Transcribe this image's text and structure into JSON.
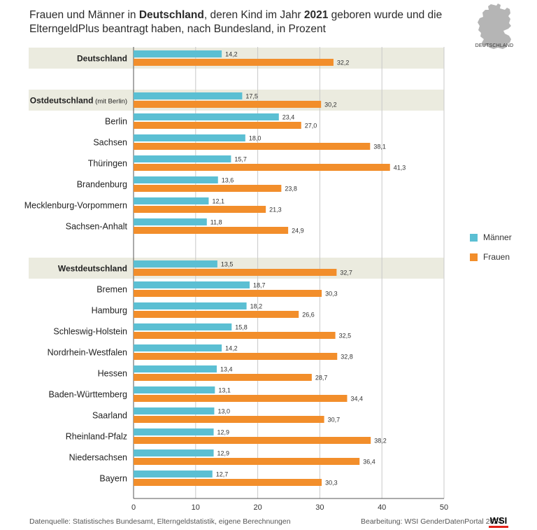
{
  "title": {
    "part1": "Frauen und Männer in ",
    "bold1": "Deutschland",
    "part2": ", deren Kind im Jahr ",
    "bold2": "2021",
    "part3": " geboren wurde und die ElterngeldPlus beantragt haben, nach Bundesland, in Prozent"
  },
  "badge": {
    "label": "DEUTSCHLAND"
  },
  "legend": [
    {
      "label": "Männer",
      "color": "#5bbfd3"
    },
    {
      "label": "Frauen",
      "color": "#f28e2b"
    }
  ],
  "footer": {
    "source": "Datenquelle: Statistisches Bundesamt, Elterngeldstatistik, eigene Berechnungen",
    "credit": "Bearbeitung: WSI GenderDatenPortal 2024",
    "logo": "WSI"
  },
  "chart_data": {
    "type": "bar",
    "orientation": "horizontal",
    "xlim": [
      0,
      50
    ],
    "xticks": [
      0,
      10,
      20,
      30,
      40,
      50
    ],
    "grid": true,
    "colors": {
      "men": "#5bbfd3",
      "women": "#f28e2b",
      "highlight": "#ebebdf"
    },
    "rows": [
      {
        "label": "Deutschland",
        "suffix": "",
        "bold": true,
        "highlight": true,
        "men": 14.2,
        "women": 32.2,
        "men_label": "14,2",
        "women_label": "32,2"
      },
      {
        "label": "Ostdeutschland",
        "suffix": " (mit Berlin)",
        "bold": true,
        "highlight": true,
        "men": 17.5,
        "women": 30.2,
        "men_label": "17,5",
        "women_label": "30,2"
      },
      {
        "label": "Berlin",
        "suffix": "",
        "bold": false,
        "highlight": false,
        "men": 23.4,
        "women": 27.0,
        "men_label": "23,4",
        "women_label": "27,0"
      },
      {
        "label": "Sachsen",
        "suffix": "",
        "bold": false,
        "highlight": false,
        "men": 18.0,
        "women": 38.1,
        "men_label": "18,0",
        "women_label": "38,1"
      },
      {
        "label": "Thüringen",
        "suffix": "",
        "bold": false,
        "highlight": false,
        "men": 15.7,
        "women": 41.3,
        "men_label": "15,7",
        "women_label": "41,3"
      },
      {
        "label": "Brandenburg",
        "suffix": "",
        "bold": false,
        "highlight": false,
        "men": 13.6,
        "women": 23.8,
        "men_label": "13,6",
        "women_label": "23,8"
      },
      {
        "label": "Mecklenburg-Vorpommern",
        "suffix": "",
        "bold": false,
        "highlight": false,
        "men": 12.1,
        "women": 21.3,
        "men_label": "12,1",
        "women_label": "21,3"
      },
      {
        "label": "Sachsen-Anhalt",
        "suffix": "",
        "bold": false,
        "highlight": false,
        "men": 11.8,
        "women": 24.9,
        "men_label": "11,8",
        "women_label": "24,9"
      },
      {
        "label": "Westdeutschland",
        "suffix": "",
        "bold": true,
        "highlight": true,
        "men": 13.5,
        "women": 32.7,
        "men_label": "13,5",
        "women_label": "32,7"
      },
      {
        "label": "Bremen",
        "suffix": "",
        "bold": false,
        "highlight": false,
        "men": 18.7,
        "women": 30.3,
        "men_label": "18,7",
        "women_label": "30,3"
      },
      {
        "label": "Hamburg",
        "suffix": "",
        "bold": false,
        "highlight": false,
        "men": 18.2,
        "women": 26.6,
        "men_label": "18,2",
        "women_label": "26,6"
      },
      {
        "label": "Schleswig-Holstein",
        "suffix": "",
        "bold": false,
        "highlight": false,
        "men": 15.8,
        "women": 32.5,
        "men_label": "15,8",
        "women_label": "32,5"
      },
      {
        "label": "Nordrhein-Westfalen",
        "suffix": "",
        "bold": false,
        "highlight": false,
        "men": 14.2,
        "women": 32.8,
        "men_label": "14,2",
        "women_label": "32,8"
      },
      {
        "label": "Hessen",
        "suffix": "",
        "bold": false,
        "highlight": false,
        "men": 13.4,
        "women": 28.7,
        "men_label": "13,4",
        "women_label": "28,7"
      },
      {
        "label": "Baden-Württemberg",
        "suffix": "",
        "bold": false,
        "highlight": false,
        "men": 13.1,
        "women": 34.4,
        "men_label": "13,1",
        "women_label": "34,4"
      },
      {
        "label": "Saarland",
        "suffix": "",
        "bold": false,
        "highlight": false,
        "men": 13.0,
        "women": 30.7,
        "men_label": "13,0",
        "women_label": "30,7"
      },
      {
        "label": "Rheinland-Pfalz",
        "suffix": "",
        "bold": false,
        "highlight": false,
        "men": 12.9,
        "women": 38.2,
        "men_label": "12,9",
        "women_label": "38,2"
      },
      {
        "label": "Niedersachsen",
        "suffix": "",
        "bold": false,
        "highlight": false,
        "men": 12.9,
        "women": 36.4,
        "men_label": "12,9",
        "women_label": "36,4"
      },
      {
        "label": "Bayern",
        "suffix": "",
        "bold": false,
        "highlight": false,
        "men": 12.7,
        "women": 30.3,
        "men_label": "12,7",
        "women_label": "30,3"
      }
    ]
  }
}
